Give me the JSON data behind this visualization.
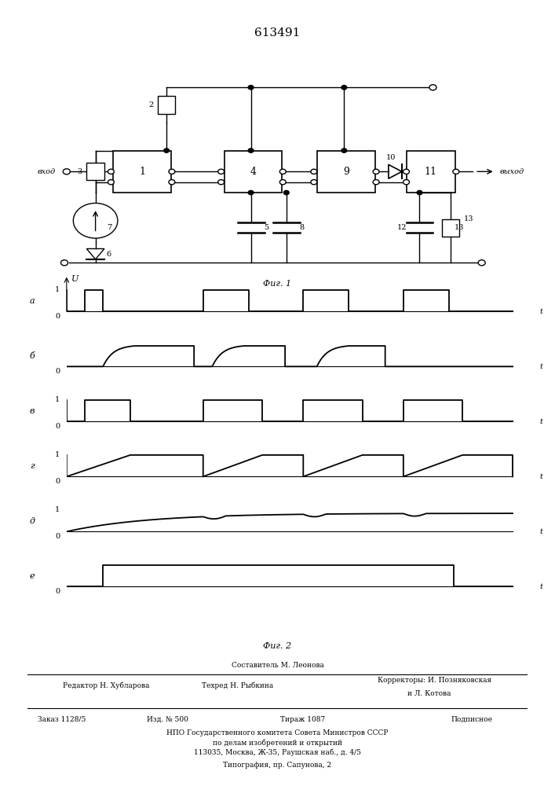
{
  "title": "613491",
  "fig1_caption": "Фиг. 1",
  "fig2_caption": "Фиг. 2",
  "waveform_labels": [
    "а",
    "б",
    "в",
    "г",
    "д",
    "е"
  ],
  "bottom_text_line1": "Составитель М. Леонова",
  "bottom_text_line2_left": "Редактор Н. Хубларова",
  "bottom_text_line2_mid": "Техред Н. Рыбкина",
  "bottom_text_line2_right": "Корректоры: И. Позняковская",
  "bottom_text_line2_right2": "и Л. Котова",
  "bottom_text_line3_1": "Заказ 1128/5",
  "bottom_text_line3_2": "Изд. № 500",
  "bottom_text_line3_3": "Тираж 1087",
  "bottom_text_line3_4": "Подписное",
  "bottom_text_line4": "НПО Государственного комитета Совета Министров СССР",
  "bottom_text_line5": "по делам изобретений и открытий",
  "bottom_text_line6": "113035, Москва, Ж-35, Раушская наб., д. 4/5",
  "bottom_text_line7": "Типография, пр. Сапунова, 2",
  "bg_color": "#ffffff",
  "line_color": "#000000"
}
